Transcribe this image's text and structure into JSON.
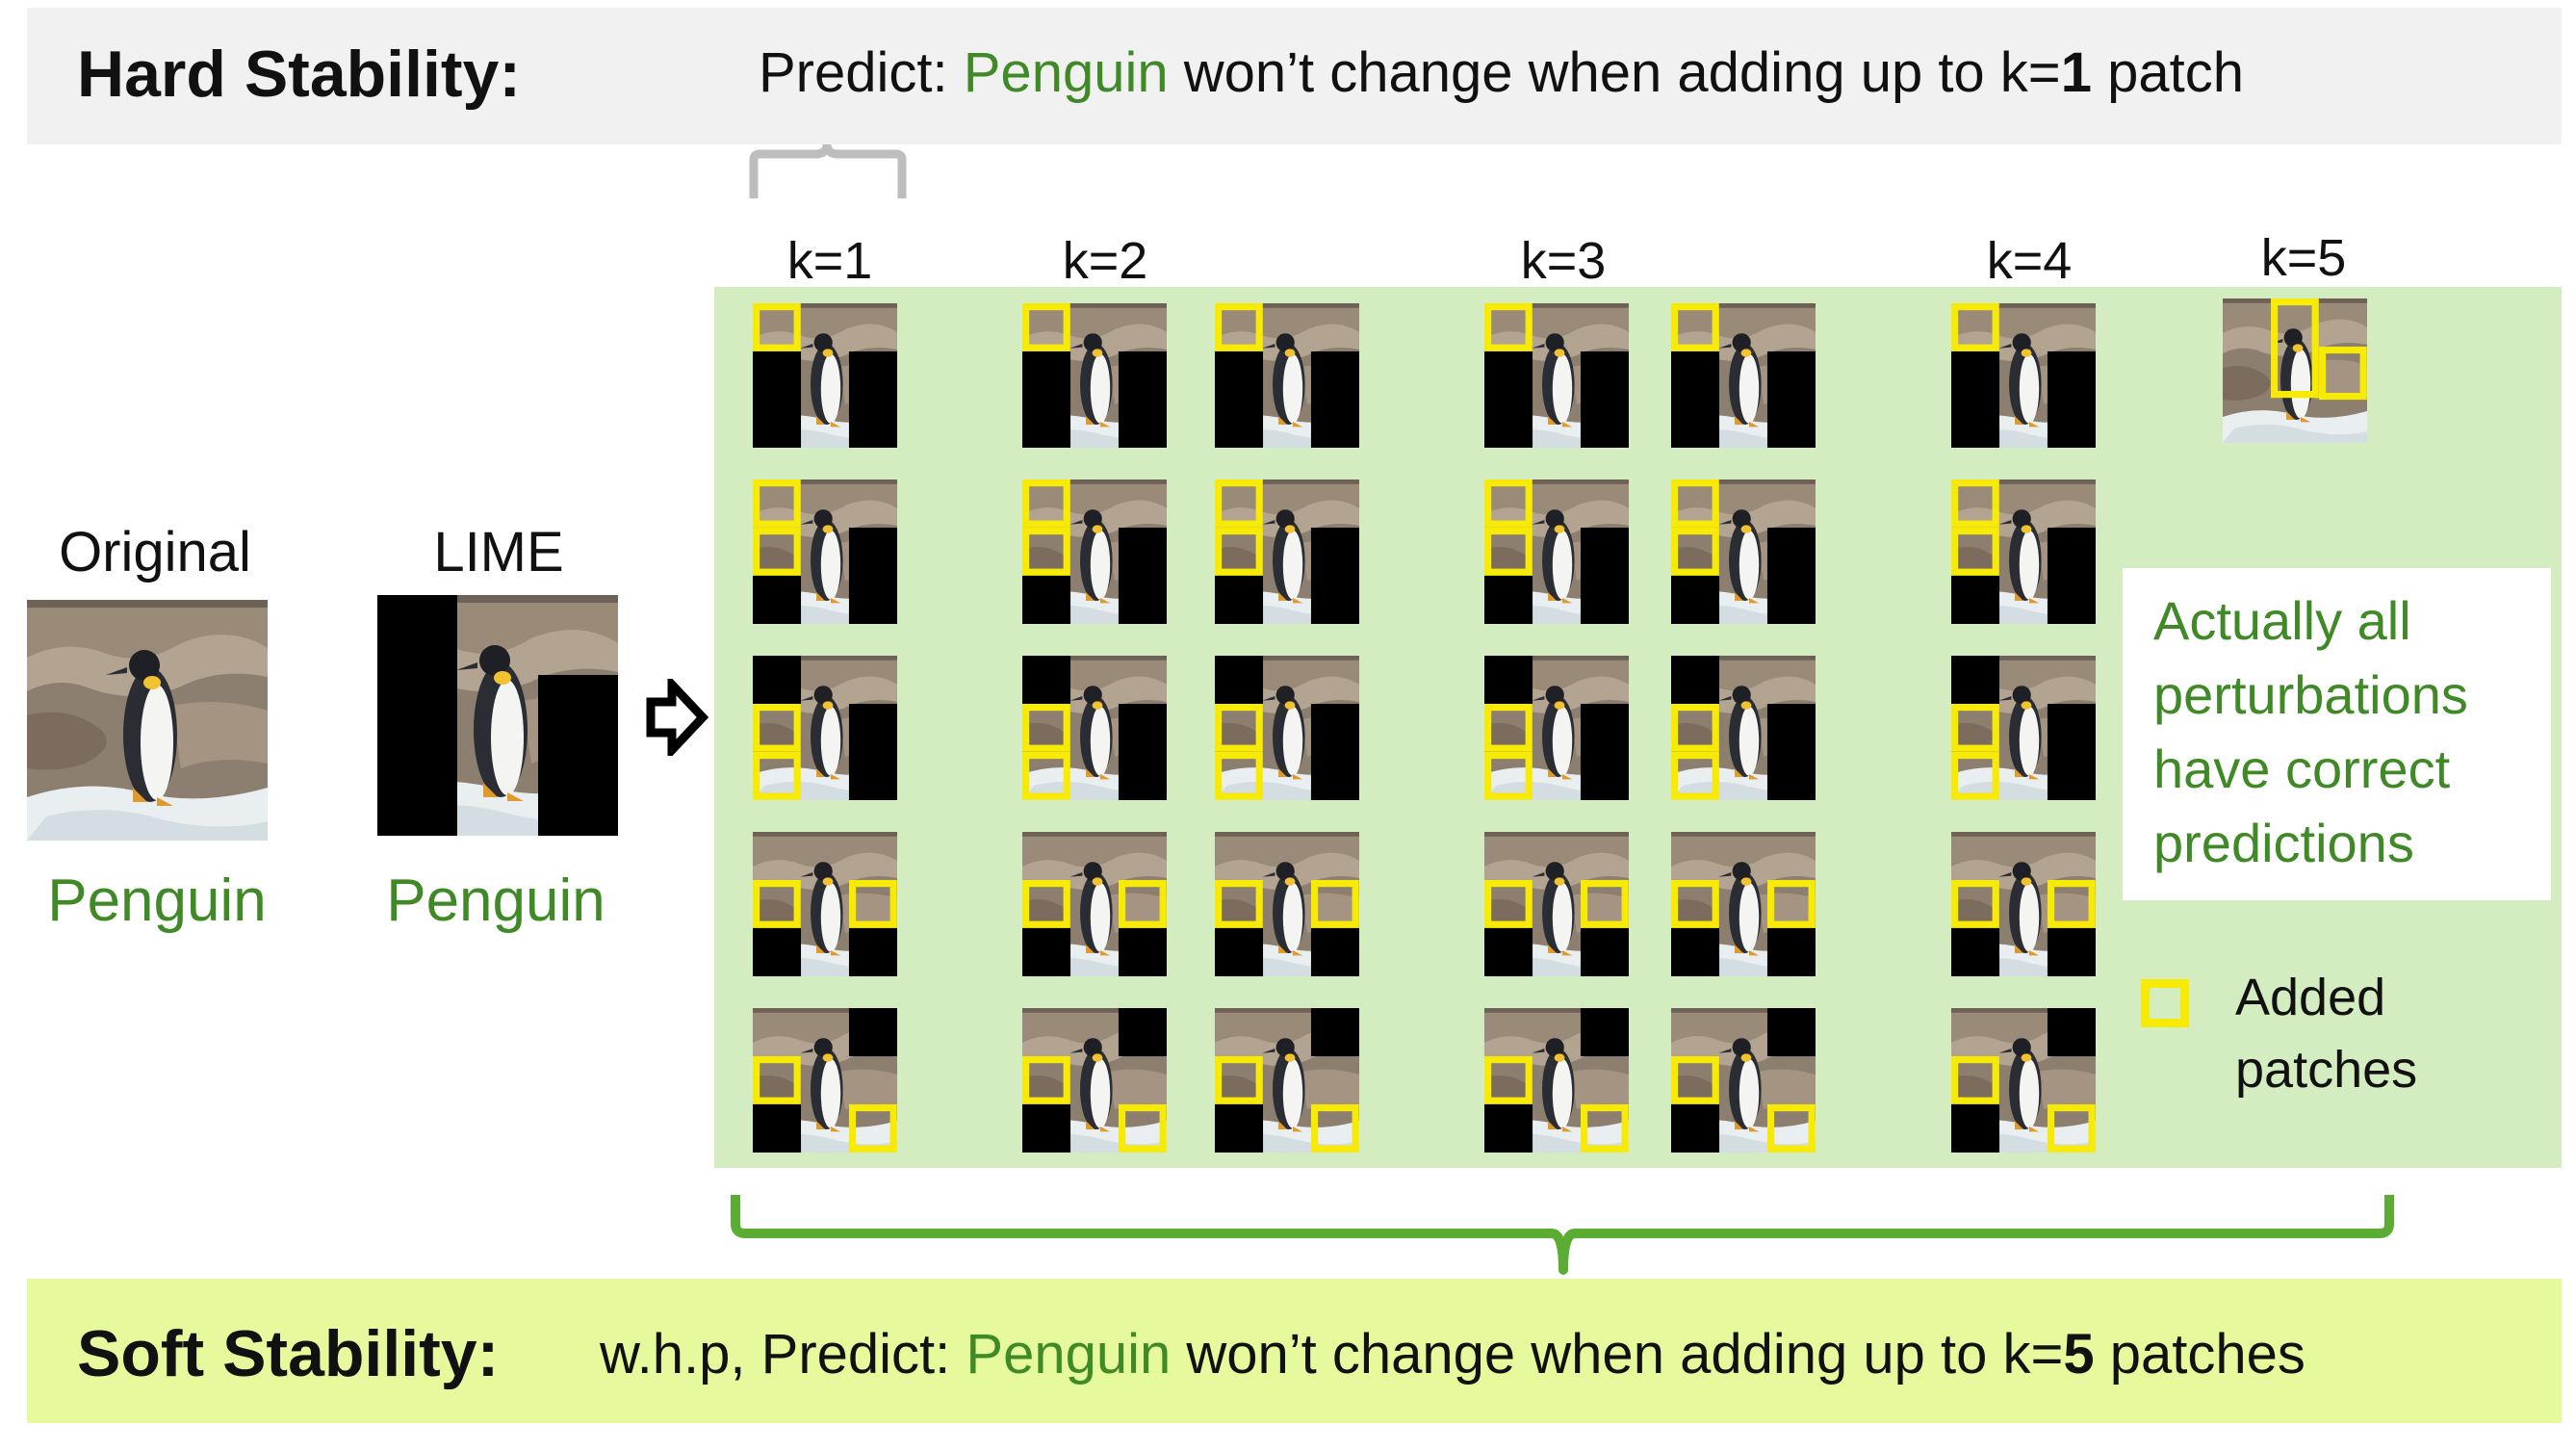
{
  "hard": {
    "title": "Hard Stability:",
    "sentence_pre": "Predict: ",
    "label": "Penguin",
    "sentence_mid": " won’t change when adding up to k=",
    "k_value": "1",
    "sentence_post": " patch"
  },
  "soft": {
    "title": "Soft Stability:",
    "sentence_pre": "w.h.p, Predict: ",
    "label": "Penguin",
    "sentence_mid": " won’t change when adding up to k=",
    "k_value": "5",
    "sentence_post": " patches"
  },
  "original": {
    "caption": "Original",
    "prediction": "Penguin"
  },
  "lime": {
    "caption": "LIME",
    "prediction": "Penguin"
  },
  "k_labels": [
    "k=1",
    "k=2",
    "k=3",
    "k=4",
    "k=5"
  ],
  "note": {
    "lines": [
      "Actually all",
      "perturbations",
      "have correct",
      "predictions"
    ]
  },
  "legend": {
    "line1": "Added",
    "line2": "patches"
  },
  "colors": {
    "highlight": "#f7ea05",
    "accent_green": "#3f8a26",
    "panel": "#d3ecc0",
    "brace": "#5aad32",
    "soft_banner": "#e6f99c",
    "hard_banner": "#f1f1f1"
  }
}
